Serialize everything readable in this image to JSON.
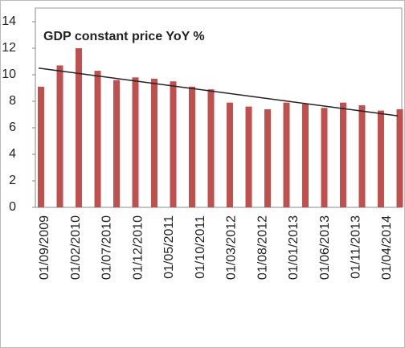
{
  "chart_data": {
    "type": "bar",
    "title": "GDP constant price YoY %",
    "values": [
      9.1,
      10.7,
      12.0,
      10.3,
      9.6,
      9.8,
      9.7,
      9.5,
      9.1,
      8.9,
      7.9,
      7.6,
      7.4,
      7.9,
      7.8,
      7.5,
      7.9,
      7.7,
      7.3,
      7.4
    ],
    "color": "#c0504d",
    "xticks": [
      "01/09/2009",
      "01/02/2010",
      "01/07/2010",
      "01/12/2010",
      "01/05/2011",
      "01/10/2011",
      "01/03/2012",
      "01/08/2012",
      "01/01/2013",
      "01/06/2013",
      "01/11/2013",
      "01/04/2014"
    ],
    "ylim": [
      0,
      14
    ],
    "yticks": [
      0,
      2,
      4,
      6,
      8,
      10,
      12,
      14
    ],
    "trendline": {
      "start": 10.5,
      "end": 6.9,
      "color": "#222222"
    }
  }
}
